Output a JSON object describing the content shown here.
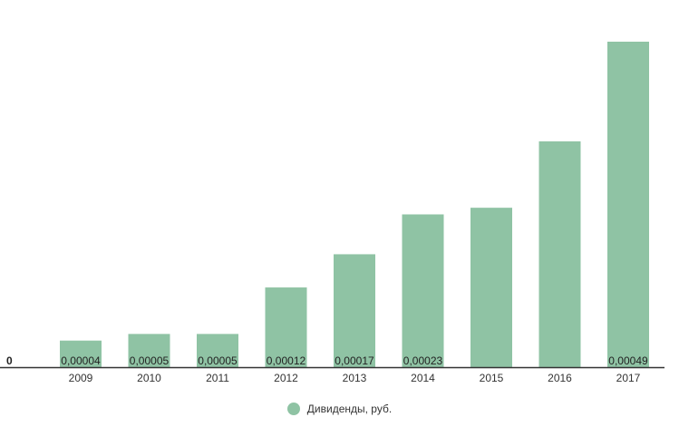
{
  "chart_data": {
    "type": "bar",
    "title": "",
    "xlabel": "",
    "ylabel": "",
    "ylim": [
      0,
      0.000535
    ],
    "zero_label": "0",
    "grid": false,
    "legend_position": "bottom-center",
    "bar_color": "#8fc3a4",
    "axis_color": "#333333",
    "categories": [
      "2009",
      "2010",
      "2011",
      "2012",
      "2013",
      "2014",
      "2015",
      "2016",
      "2017"
    ],
    "series": [
      {
        "name": "Дивиденды, руб.",
        "values": [
          4e-05,
          5e-05,
          5e-05,
          0.00012,
          0.00017,
          0.00023,
          0.00024,
          0.00034,
          0.00049
        ],
        "labels": [
          "0,00004",
          "0,00005",
          "0,00005",
          "0,00012",
          "0,00017",
          "0,00023",
          "",
          "",
          "0,00049"
        ]
      }
    ]
  }
}
